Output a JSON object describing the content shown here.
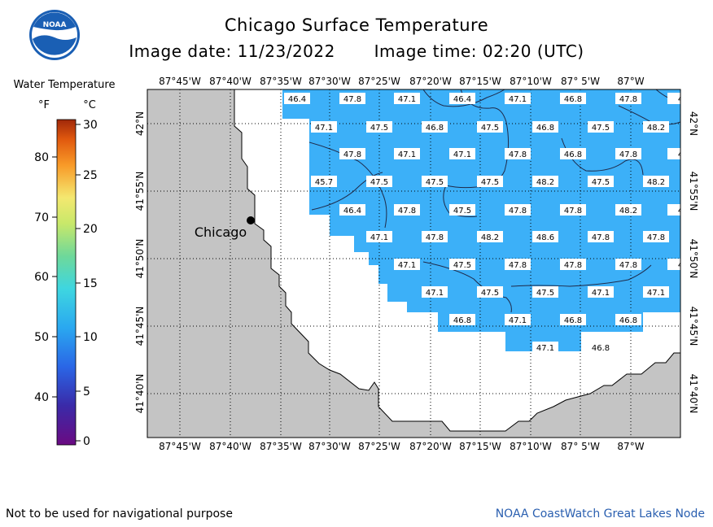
{
  "logo": {
    "icon": "noaa-logo-icon",
    "text": "NOAA"
  },
  "title": "Chicago Surface Temperature",
  "image_date_label": "Image date:",
  "image_date": "11/23/2022",
  "image_time_label": "Image time:",
  "image_time": "02:20 (UTC)",
  "legend": {
    "title": "Water Temperature",
    "unit_f": "°F",
    "unit_c": "°C",
    "f_ticks": [
      "80",
      "70",
      "60",
      "50",
      "40"
    ],
    "c_ticks": [
      "30",
      "25",
      "20",
      "15",
      "10",
      "5",
      "0"
    ]
  },
  "map": {
    "city_label": "Chicago",
    "lon_labels": [
      "87°45'W",
      "87°40'W",
      "87°35'W",
      "87°30'W",
      "87°25'W",
      "87°20'W",
      "87°15'W",
      "87°10'W",
      "87° 5'W",
      "87°W"
    ],
    "lat_labels": [
      "42°N",
      "41°55'N",
      "41°50'N",
      "41°45'N",
      "41°40'N"
    ],
    "temperature_labels": [
      [
        "46.4",
        "47.8",
        "47.1",
        "46.4",
        "47.1",
        "46.8",
        "47.8",
        "4"
      ],
      [
        "47.1",
        "47.5",
        "46.8",
        "47.5",
        "46.8",
        "47.5",
        "48.2"
      ],
      [
        "47.8",
        "47.1",
        "47.1",
        "47.8",
        "46.8",
        "47.8",
        "4"
      ],
      [
        "45.7",
        "47.5",
        "47.5",
        "47.5",
        "48.2",
        "47.5",
        "48.2"
      ],
      [
        "46.4",
        "47.8",
        "47.5",
        "47.8",
        "47.8",
        "48.2",
        "4"
      ],
      [
        "47.1",
        "47.8",
        "48.2",
        "48.6",
        "47.8",
        "47.8"
      ],
      [
        "47.1",
        "47.5",
        "47.8",
        "47.8",
        "47.8",
        "4"
      ],
      [
        "47.1",
        "47.5",
        "47.5",
        "47.1",
        "47.1"
      ],
      [
        "46.8",
        "47.1",
        "46.8",
        "46.8"
      ],
      [
        "47.1",
        "46.8"
      ]
    ]
  },
  "footer_left": "Not to be used for navigational purpose",
  "footer_right": "NOAA CoastWatch Great Lakes Node"
}
